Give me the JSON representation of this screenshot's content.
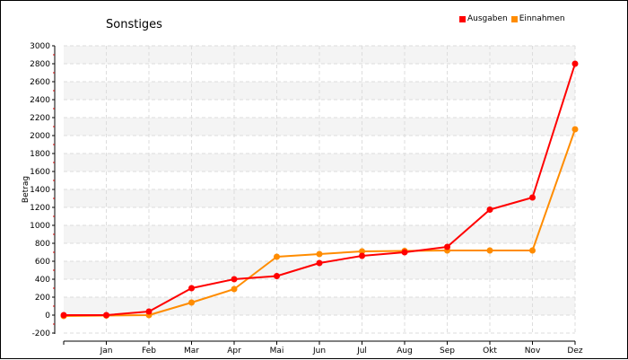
{
  "chart_data": {
    "type": "line",
    "title": "Sonstiges",
    "xlabel": "",
    "ylabel": "Betrag",
    "ylim": [
      -200,
      3000
    ],
    "yticks": [
      -200,
      0,
      200,
      400,
      600,
      800,
      1000,
      1200,
      1400,
      1600,
      1800,
      2000,
      2200,
      2400,
      2600,
      2800,
      3000
    ],
    "categories": [
      "",
      "Jan",
      "Feb",
      "Mar",
      "Apr",
      "Mai",
      "Jun",
      "Jul",
      "Aug",
      "Sep",
      "Okt",
      "Nov",
      "Dez"
    ],
    "grid": true,
    "legend_position": "top-right",
    "series": [
      {
        "name": "Ausgaben",
        "color": "#ff0000",
        "values": [
          0,
          0,
          40,
          300,
          400,
          435,
          580,
          660,
          700,
          760,
          1175,
          1310,
          2800
        ]
      },
      {
        "name": "Einnahmen",
        "color": "#ff8c00",
        "values": [
          -10,
          -5,
          0,
          140,
          290,
          650,
          680,
          710,
          715,
          720,
          720,
          720,
          2070
        ]
      }
    ]
  }
}
